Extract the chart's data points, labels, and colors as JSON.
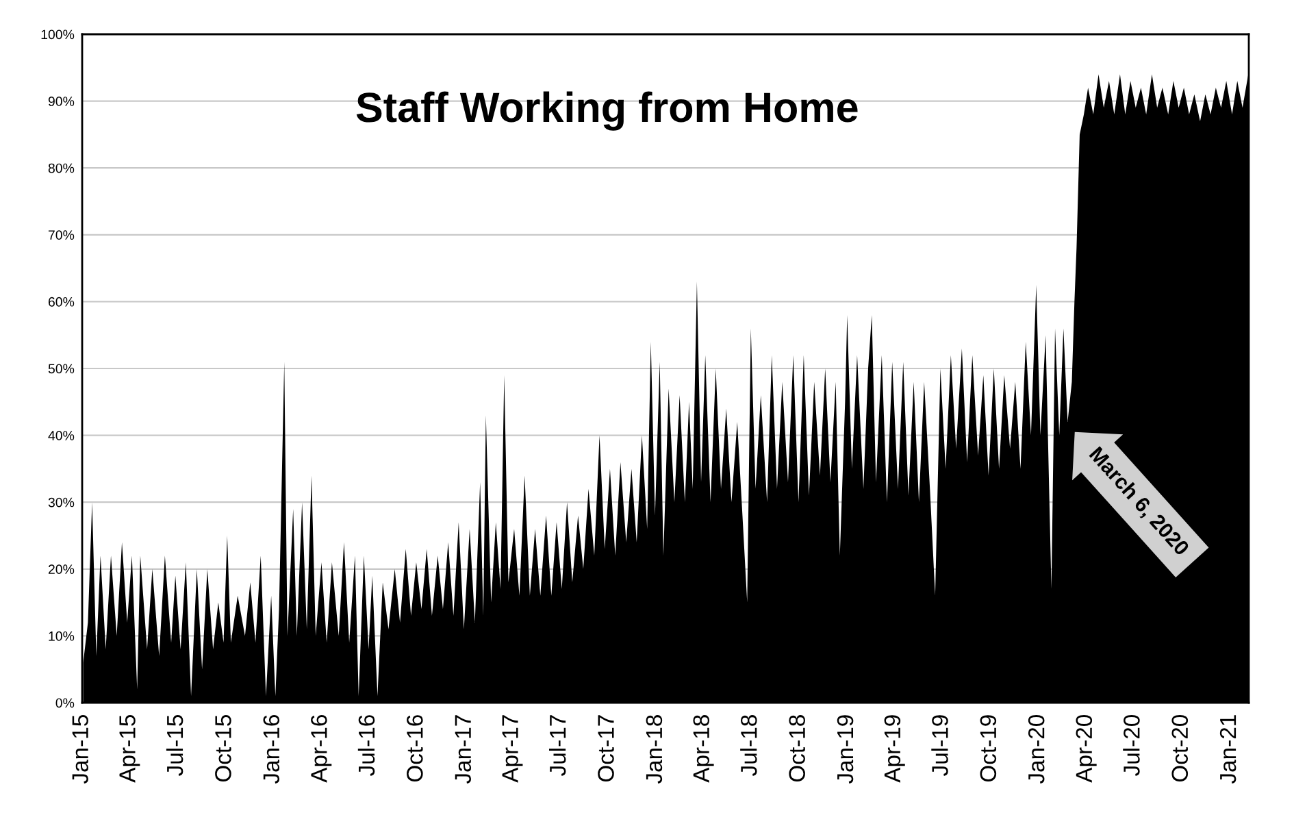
{
  "chart_data": {
    "type": "area",
    "title": "Staff Working from Home",
    "x": [
      "2015-01-03",
      "2015-01-12",
      "2015-01-20",
      "2015-01-28",
      "2015-02-05",
      "2015-02-15",
      "2015-02-25",
      "2015-03-08",
      "2015-03-18",
      "2015-03-28",
      "2015-04-06",
      "2015-04-16",
      "2015-04-22",
      "2015-05-05",
      "2015-05-15",
      "2015-05-28",
      "2015-06-08",
      "2015-06-20",
      "2015-06-28",
      "2015-07-08",
      "2015-07-18",
      "2015-07-28",
      "2015-08-08",
      "2015-08-18",
      "2015-08-28",
      "2015-09-08",
      "2015-09-18",
      "2015-09-28",
      "2015-10-05",
      "2015-10-12",
      "2015-10-25",
      "2015-11-08",
      "2015-11-18",
      "2015-11-28",
      "2015-12-08",
      "2015-12-18",
      "2015-12-28",
      "2016-01-05",
      "2016-01-12",
      "2016-01-22",
      "2016-01-28",
      "2016-02-08",
      "2016-02-15",
      "2016-02-25",
      "2016-03-05",
      "2016-03-14",
      "2016-03-22",
      "2016-04-02",
      "2016-04-12",
      "2016-04-22",
      "2016-05-05",
      "2016-05-15",
      "2016-05-25",
      "2016-06-05",
      "2016-06-12",
      "2016-06-22",
      "2016-07-01",
      "2016-07-08",
      "2016-07-18",
      "2016-07-28",
      "2016-08-08",
      "2016-08-20",
      "2016-08-30",
      "2016-09-10",
      "2016-09-20",
      "2016-09-30",
      "2016-10-10",
      "2016-10-20",
      "2016-10-30",
      "2016-11-10",
      "2016-11-20",
      "2016-11-30",
      "2016-12-10",
      "2016-12-20",
      "2016-12-30",
      "2017-01-10",
      "2017-01-20",
      "2017-01-30",
      "2017-02-05",
      "2017-02-10",
      "2017-02-20",
      "2017-03-01",
      "2017-03-10",
      "2017-03-17",
      "2017-03-25",
      "2017-04-05",
      "2017-04-15",
      "2017-04-25",
      "2017-05-05",
      "2017-05-15",
      "2017-05-25",
      "2017-06-05",
      "2017-06-15",
      "2017-06-25",
      "2017-07-05",
      "2017-07-15",
      "2017-07-25",
      "2017-08-05",
      "2017-08-15",
      "2017-08-25",
      "2017-09-05",
      "2017-09-15",
      "2017-09-25",
      "2017-10-05",
      "2017-10-15",
      "2017-10-25",
      "2017-11-05",
      "2017-11-15",
      "2017-11-25",
      "2017-12-05",
      "2017-12-15",
      "2017-12-22",
      "2017-12-30",
      "2018-01-08",
      "2018-01-15",
      "2018-01-25",
      "2018-02-05",
      "2018-02-15",
      "2018-02-25",
      "2018-03-05",
      "2018-03-12",
      "2018-03-20",
      "2018-03-28",
      "2018-04-05",
      "2018-04-15",
      "2018-04-25",
      "2018-05-05",
      "2018-05-15",
      "2018-05-25",
      "2018-06-05",
      "2018-06-15",
      "2018-06-24",
      "2018-07-01",
      "2018-07-10",
      "2018-07-20",
      "2018-08-01",
      "2018-08-10",
      "2018-08-20",
      "2018-08-30",
      "2018-09-10",
      "2018-09-20",
      "2018-09-30",
      "2018-10-10",
      "2018-10-20",
      "2018-10-30",
      "2018-11-10",
      "2018-11-20",
      "2018-11-30",
      "2018-12-10",
      "2018-12-18",
      "2018-12-28",
      "2019-01-01",
      "2019-01-10",
      "2019-01-20",
      "2019-02-01",
      "2019-02-10",
      "2019-02-17",
      "2019-02-25",
      "2019-03-08",
      "2019-03-18",
      "2019-03-28",
      "2019-04-08",
      "2019-04-18",
      "2019-04-28",
      "2019-05-08",
      "2019-05-18",
      "2019-05-28",
      "2019-06-08",
      "2019-06-18",
      "2019-06-28",
      "2019-07-08",
      "2019-07-18",
      "2019-07-28",
      "2019-08-08",
      "2019-08-18",
      "2019-08-28",
      "2019-09-08",
      "2019-09-18",
      "2019-09-28",
      "2019-10-08",
      "2019-10-18",
      "2019-10-28",
      "2019-11-08",
      "2019-11-18",
      "2019-11-28",
      "2019-12-08",
      "2019-12-18",
      "2019-12-28",
      "2020-01-05",
      "2020-01-15",
      "2020-01-26",
      "2020-02-02",
      "2020-02-10",
      "2020-02-18",
      "2020-02-26",
      "2020-03-05",
      "2020-03-10",
      "2020-03-14",
      "2020-03-20",
      "2020-03-28",
      "2020-04-05",
      "2020-04-15",
      "2020-04-25",
      "2020-05-05",
      "2020-05-15",
      "2020-05-25",
      "2020-06-05",
      "2020-06-15",
      "2020-06-25",
      "2020-07-05",
      "2020-07-15",
      "2020-07-25",
      "2020-08-05",
      "2020-08-15",
      "2020-08-25",
      "2020-09-05",
      "2020-09-15",
      "2020-09-25",
      "2020-10-05",
      "2020-10-15",
      "2020-10-25",
      "2020-11-05",
      "2020-11-15",
      "2020-11-25",
      "2020-12-05",
      "2020-12-15",
      "2020-12-25",
      "2021-01-05",
      "2021-01-15",
      "2021-01-25",
      "2021-02-05"
    ],
    "series": [
      {
        "color": "#000000",
        "values": [
          6,
          12,
          30,
          7,
          22,
          8,
          22,
          10,
          24,
          12,
          22,
          2,
          22,
          8,
          20,
          7,
          22,
          9,
          19,
          8,
          21,
          1,
          20,
          5,
          20,
          8,
          15,
          9,
          25,
          9,
          16,
          10,
          18,
          9,
          22,
          1,
          16,
          1,
          14,
          51,
          10,
          29,
          10,
          30,
          11,
          34,
          10,
          21,
          9,
          21,
          10,
          24,
          9,
          22,
          1,
          22,
          8,
          19,
          1,
          18,
          11,
          20,
          12,
          23,
          13,
          21,
          14,
          23,
          13,
          22,
          14,
          24,
          13,
          27,
          11,
          26,
          12,
          33,
          13,
          43,
          15,
          27,
          17,
          49,
          18,
          26,
          16,
          34,
          16,
          26,
          16,
          28,
          16,
          27,
          17,
          30,
          18,
          28,
          20,
          32,
          22,
          40,
          23,
          35,
          22,
          36,
          24,
          35,
          24,
          40,
          26,
          54,
          28,
          51,
          22,
          47,
          30,
          46,
          30,
          45,
          32,
          63,
          33,
          52,
          30,
          50,
          32,
          44,
          30,
          42,
          28,
          15,
          56,
          32,
          46,
          30,
          52,
          32,
          48,
          33,
          52,
          30,
          52,
          31,
          48,
          34,
          50,
          33,
          48,
          22,
          45,
          58,
          35,
          52,
          32,
          50,
          58,
          33,
          52,
          30,
          51,
          32,
          51,
          31,
          48,
          30,
          48,
          32,
          16,
          50,
          35,
          52,
          38,
          53,
          36,
          52,
          37,
          49,
          34,
          50,
          35,
          49,
          38,
          48,
          35,
          54,
          40,
          62.5,
          40,
          55,
          17,
          56,
          40,
          56,
          42,
          48,
          60,
          68,
          85,
          88,
          92,
          88,
          94,
          89,
          93,
          88,
          94,
          88,
          93,
          89,
          92,
          88,
          94,
          89,
          92,
          88,
          93,
          89,
          92,
          88,
          91,
          87,
          91,
          88,
          92,
          89,
          93,
          88,
          93,
          89,
          94
        ]
      }
    ],
    "xlim": [
      "2015-01-01",
      "2021-02-06"
    ],
    "xticks": [
      {
        "value": "2015-01-01",
        "label": "Jan-15"
      },
      {
        "value": "2015-04-01",
        "label": "Apr-15"
      },
      {
        "value": "2015-07-01",
        "label": "Jul-15"
      },
      {
        "value": "2015-10-01",
        "label": "Oct-15"
      },
      {
        "value": "2016-01-01",
        "label": "Jan-16"
      },
      {
        "value": "2016-04-01",
        "label": "Apr-16"
      },
      {
        "value": "2016-07-01",
        "label": "Jul-16"
      },
      {
        "value": "2016-10-01",
        "label": "Oct-16"
      },
      {
        "value": "2017-01-01",
        "label": "Jan-17"
      },
      {
        "value": "2017-04-01",
        "label": "Apr-17"
      },
      {
        "value": "2017-07-01",
        "label": "Jul-17"
      },
      {
        "value": "2017-10-01",
        "label": "Oct-17"
      },
      {
        "value": "2018-01-01",
        "label": "Jan-18"
      },
      {
        "value": "2018-04-01",
        "label": "Apr-18"
      },
      {
        "value": "2018-07-01",
        "label": "Jul-18"
      },
      {
        "value": "2018-10-01",
        "label": "Oct-18"
      },
      {
        "value": "2019-01-01",
        "label": "Jan-19"
      },
      {
        "value": "2019-04-01",
        "label": "Apr-19"
      },
      {
        "value": "2019-07-01",
        "label": "Jul-19"
      },
      {
        "value": "2019-10-01",
        "label": "Oct-19"
      },
      {
        "value": "2020-01-01",
        "label": "Jan-20"
      },
      {
        "value": "2020-04-01",
        "label": "Apr-20"
      },
      {
        "value": "2020-07-01",
        "label": "Jul-20"
      },
      {
        "value": "2020-10-01",
        "label": "Oct-20"
      },
      {
        "value": "2021-01-01",
        "label": "Jan-21"
      }
    ],
    "ylim": [
      0,
      100
    ],
    "yticks": [
      {
        "value": 0,
        "label": "0%"
      },
      {
        "value": 10,
        "label": "10%"
      },
      {
        "value": 20,
        "label": "20%"
      },
      {
        "value": 30,
        "label": "30%"
      },
      {
        "value": 40,
        "label": "40%"
      },
      {
        "value": 50,
        "label": "50%"
      },
      {
        "value": 60,
        "label": "60%"
      },
      {
        "value": 70,
        "label": "70%"
      },
      {
        "value": 80,
        "label": "80%"
      },
      {
        "value": 90,
        "label": "90%"
      },
      {
        "value": 100,
        "label": "100%"
      }
    ],
    "grid": "y",
    "annotations": [
      "March 6, 2020"
    ]
  }
}
